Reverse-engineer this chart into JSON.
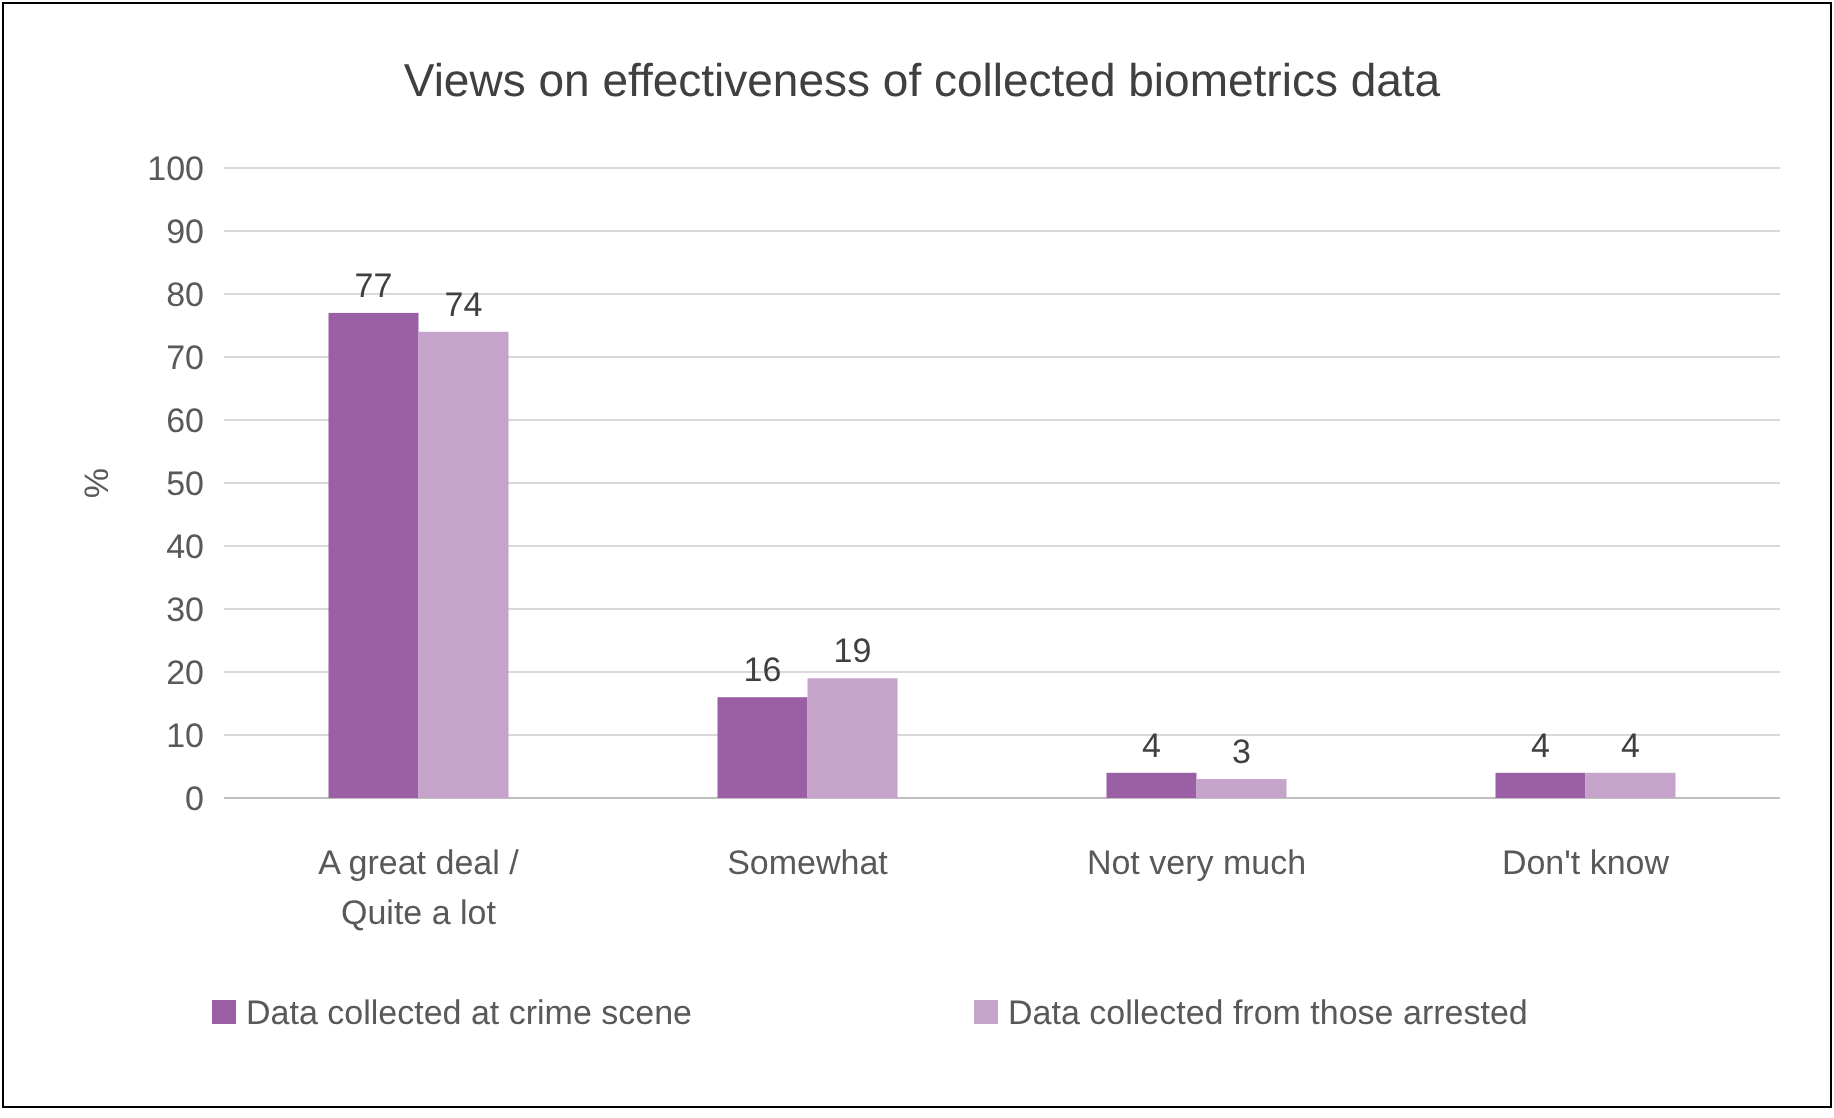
{
  "chart_data": {
    "type": "bar",
    "title": "Views on effectiveness of collected biometrics data",
    "ylabel": "%",
    "categories": [
      "A great deal / Quite a lot",
      "Somewhat",
      "Not very much",
      "Don't know"
    ],
    "series": [
      {
        "name": "Data collected at crime scene",
        "color": "#9b5fa5",
        "values": [
          77,
          16,
          4,
          4
        ]
      },
      {
        "name": "Data collected from those arrested",
        "color": "#c6a3cb",
        "values": [
          74,
          19,
          3,
          4
        ]
      }
    ],
    "ylim": [
      0,
      100
    ],
    "yticks": [
      0,
      10,
      20,
      30,
      40,
      50,
      60,
      70,
      80,
      90,
      100
    ],
    "grid": "y",
    "legend": "bottom",
    "data_labels": true
  }
}
